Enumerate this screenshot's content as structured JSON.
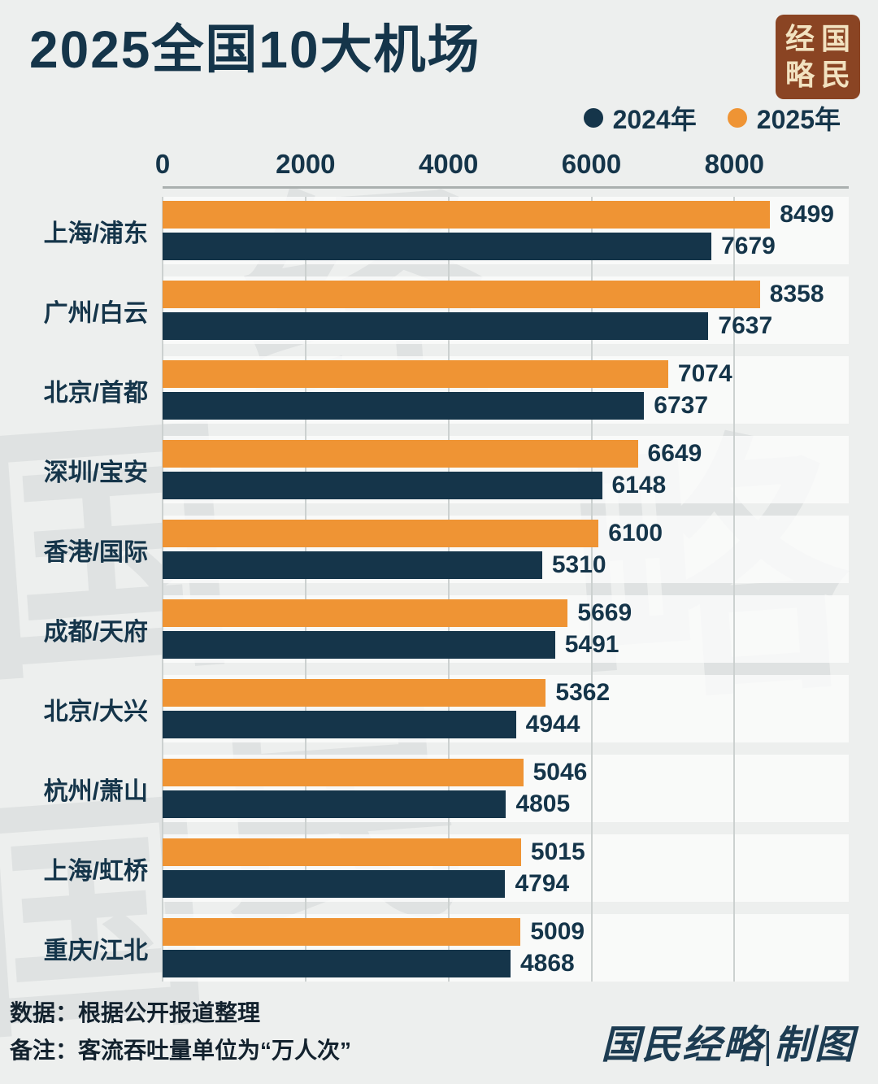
{
  "page": {
    "title": "2025全国10大机场",
    "background": "#edefee",
    "navy": "#15354a",
    "orange": "#ef9434"
  },
  "seal": {
    "chars": [
      "经",
      "国",
      "略",
      "民"
    ]
  },
  "legend": [
    {
      "label": "2024年",
      "color": "#15354a"
    },
    {
      "label": "2025年",
      "color": "#ef9434"
    }
  ],
  "chart_data": {
    "type": "bar",
    "orientation": "horizontal",
    "title": "2025全国10大机场",
    "categories": [
      "上海/浦东",
      "广州/白云",
      "北京/首都",
      "深圳/宝安",
      "香港/国际",
      "成都/天府",
      "北京/大兴",
      "杭州/萧山",
      "上海/虹桥",
      "重庆/江北"
    ],
    "series": [
      {
        "name": "2025年",
        "color": "#ef9434",
        "values": [
          8499,
          8358,
          7074,
          6649,
          6100,
          5669,
          5362,
          5046,
          5015,
          5009
        ]
      },
      {
        "name": "2024年",
        "color": "#15354a",
        "values": [
          7679,
          7637,
          6737,
          6148,
          5310,
          5491,
          4944,
          4805,
          4794,
          4868
        ]
      }
    ],
    "x_ticks": [
      0,
      2000,
      4000,
      6000,
      8000
    ],
    "xlim": [
      0,
      9600
    ],
    "grid": true,
    "legend_position": "top-right",
    "unit_note": "客流吞吐量单位为“万人次”"
  },
  "footer": {
    "line1": "数据：根据公开报道整理",
    "line2": "备注：客流吞吐量单位为“万人次”",
    "credit": "国民经略|制图"
  },
  "watermark": {
    "chars": [
      "国",
      "经",
      "略",
      "民",
      "国"
    ]
  }
}
